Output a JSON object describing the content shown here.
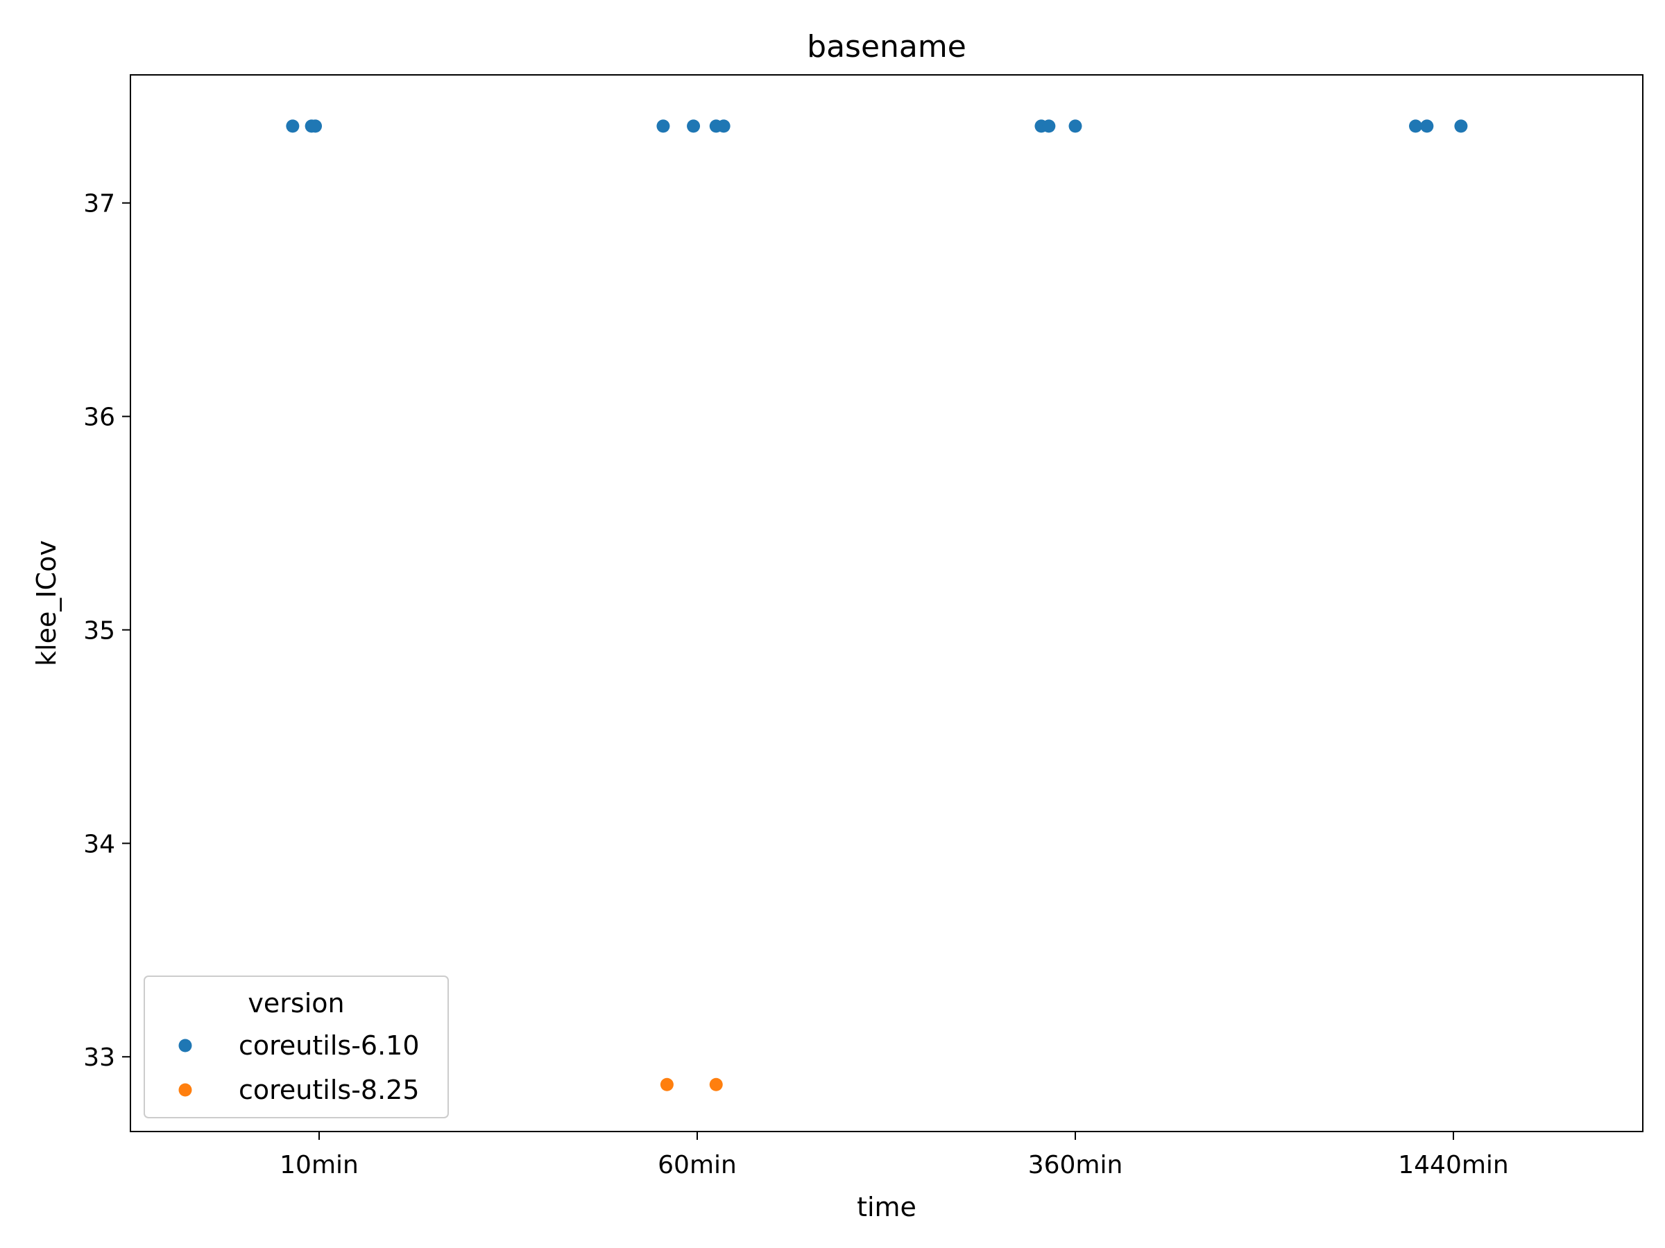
{
  "chart_data": {
    "type": "scatter",
    "title": "basename",
    "xlabel": "time",
    "ylabel": "klee_ICov",
    "categories": [
      "10min",
      "60min",
      "360min",
      "1440min"
    ],
    "yticks": [
      33,
      34,
      35,
      36,
      37
    ],
    "ylim": [
      32.65,
      37.6
    ],
    "grid": false,
    "legend": {
      "title": "version",
      "placement": "lower-left"
    },
    "series": [
      {
        "name": "coreutils-6.10",
        "color": "#1f77b4",
        "points": [
          {
            "category": "10min",
            "jitter": -0.07,
            "y": 37.36
          },
          {
            "category": "10min",
            "jitter": -0.02,
            "y": 37.36
          },
          {
            "category": "10min",
            "jitter": -0.01,
            "y": 37.36
          },
          {
            "category": "60min",
            "jitter": -0.09,
            "y": 37.36
          },
          {
            "category": "60min",
            "jitter": -0.01,
            "y": 37.36
          },
          {
            "category": "60min",
            "jitter": 0.05,
            "y": 37.36
          },
          {
            "category": "60min",
            "jitter": 0.07,
            "y": 37.36
          },
          {
            "category": "360min",
            "jitter": -0.09,
            "y": 37.36
          },
          {
            "category": "360min",
            "jitter": -0.07,
            "y": 37.36
          },
          {
            "category": "360min",
            "jitter": 0.0,
            "y": 37.36
          },
          {
            "category": "1440min",
            "jitter": -0.1,
            "y": 37.36
          },
          {
            "category": "1440min",
            "jitter": -0.07,
            "y": 37.36
          },
          {
            "category": "1440min",
            "jitter": 0.02,
            "y": 37.36
          }
        ]
      },
      {
        "name": "coreutils-8.25",
        "color": "#ff7f0e",
        "points": [
          {
            "category": "60min",
            "jitter": -0.08,
            "y": 32.87
          },
          {
            "category": "60min",
            "jitter": 0.05,
            "y": 32.87
          }
        ]
      }
    ]
  }
}
